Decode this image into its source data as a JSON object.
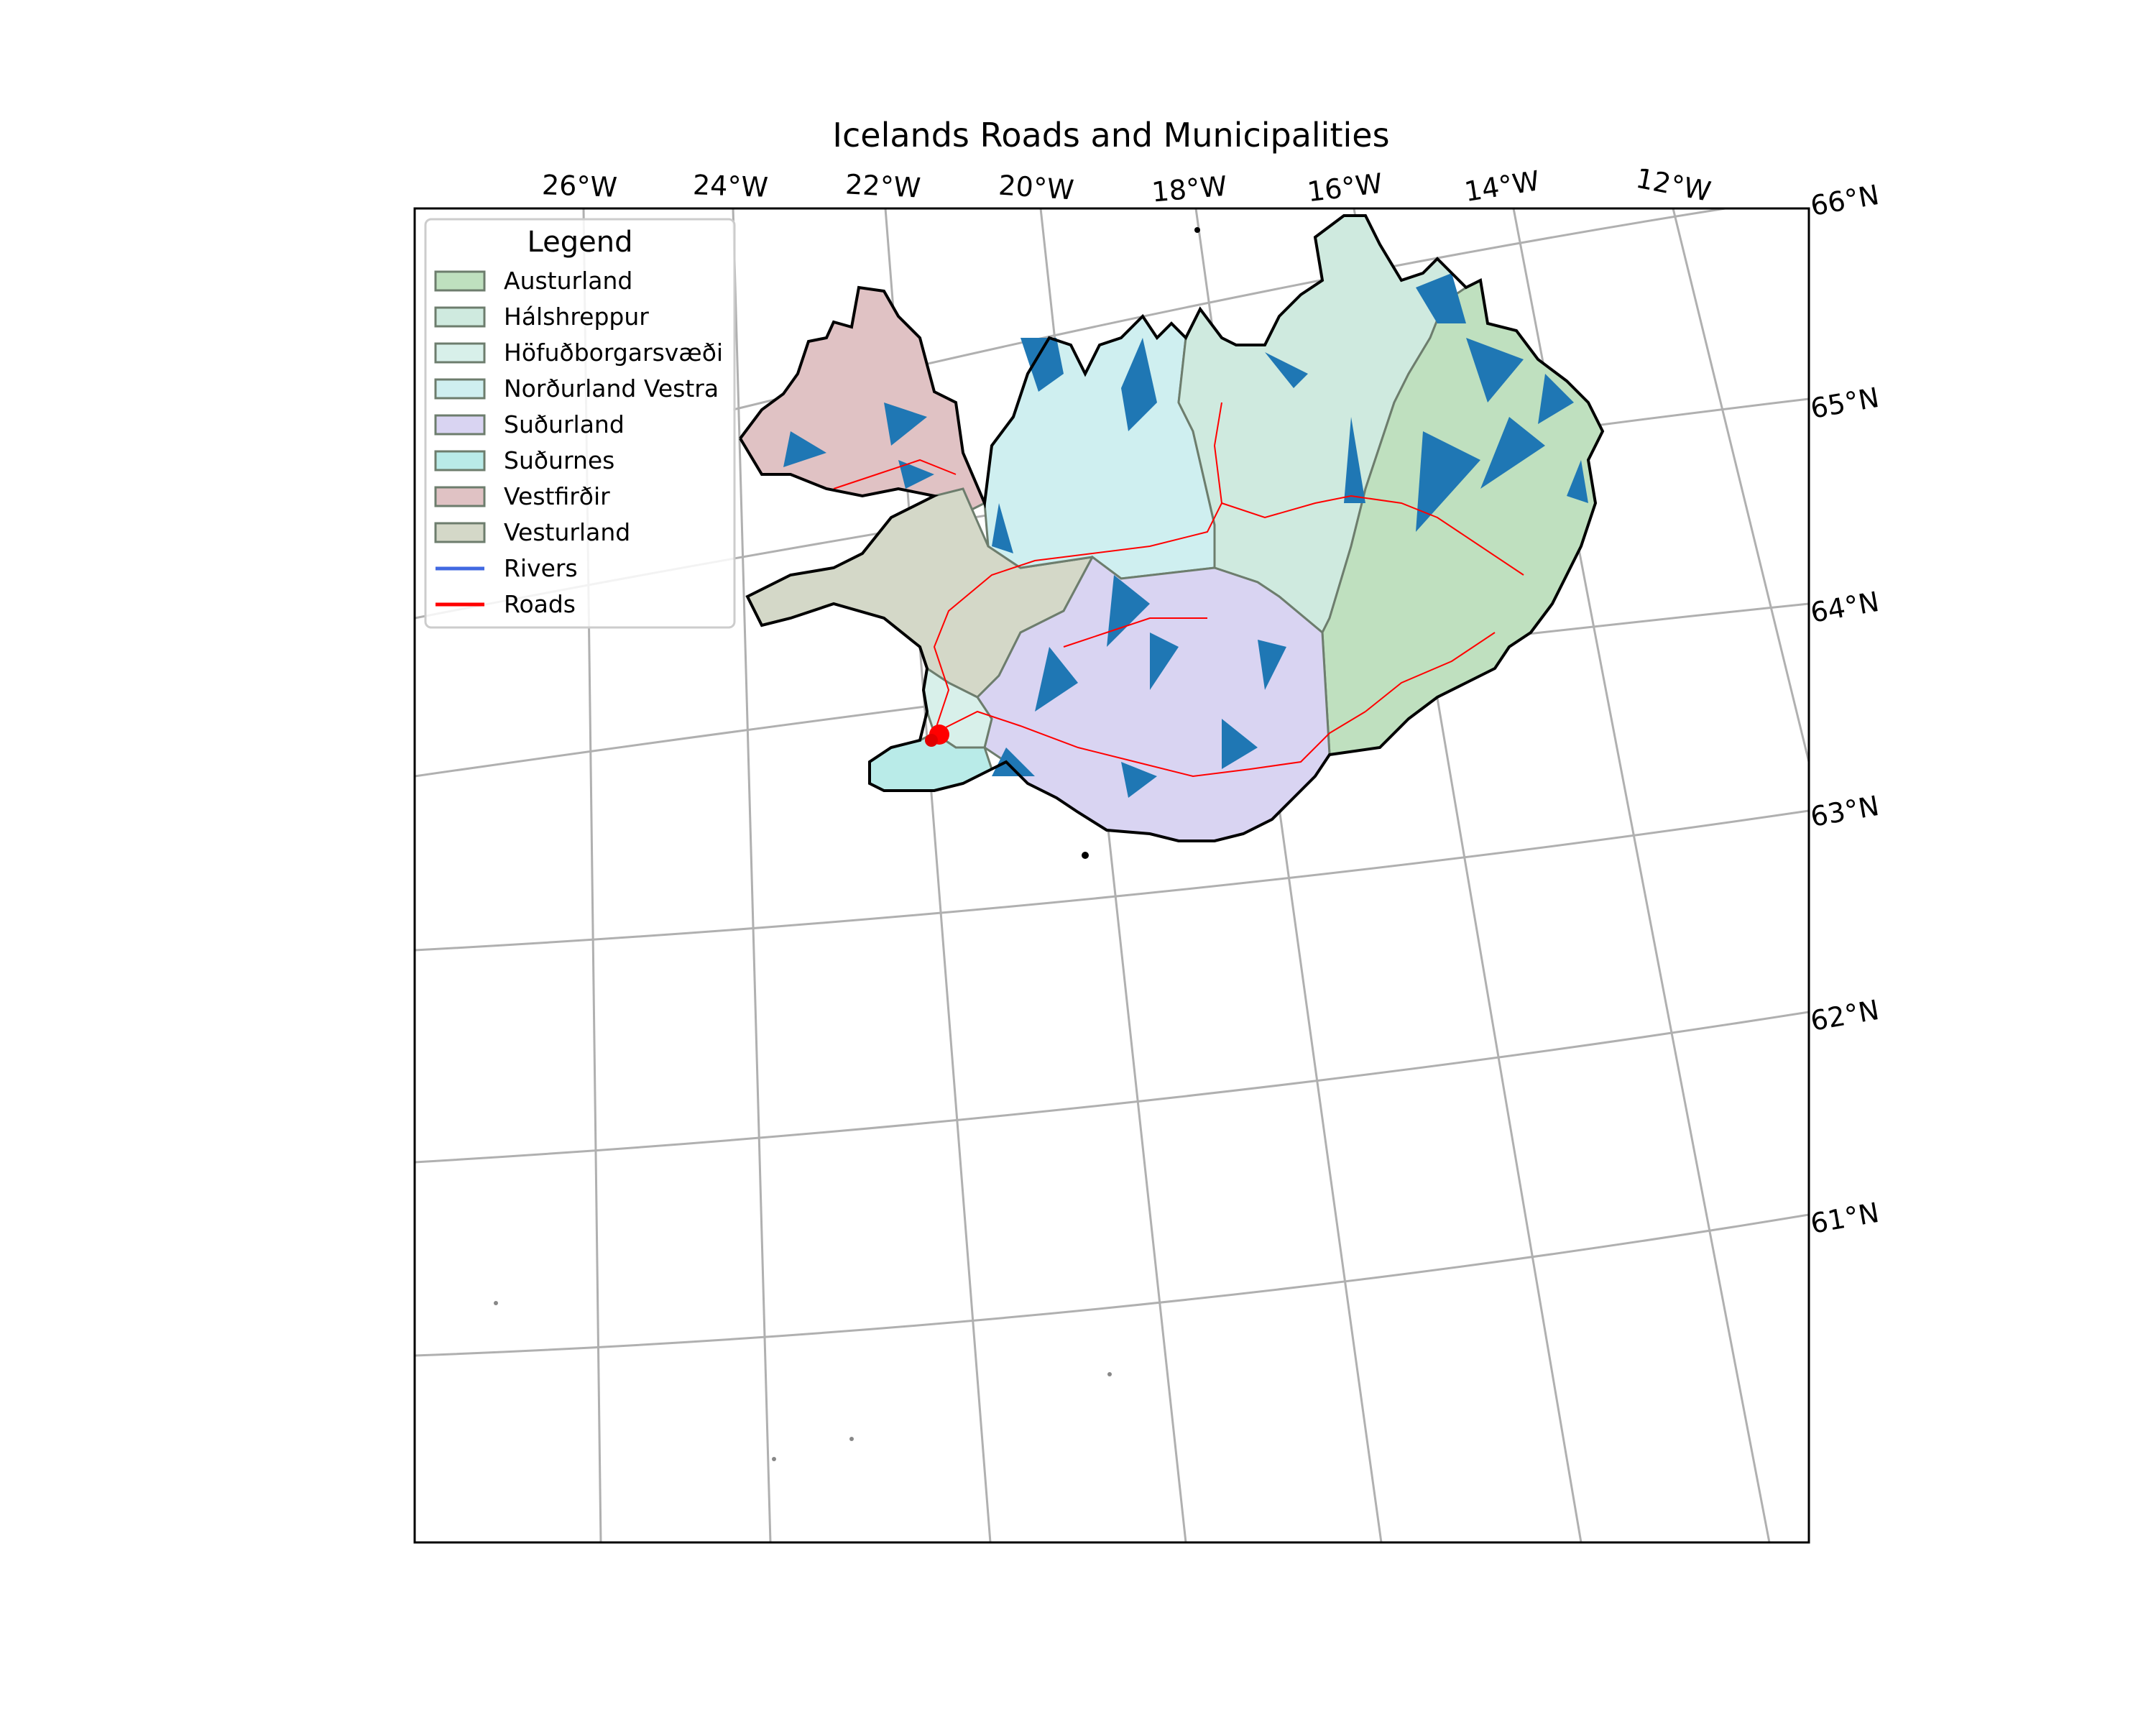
{
  "figure": {
    "title": "Icelands Roads and Municipalities"
  },
  "graticule": {
    "longitude_labels": [
      "26°W",
      "24°W",
      "22°W",
      "20°W",
      "18°W",
      "16°W",
      "14°W",
      "12°W"
    ],
    "latitude_labels": [
      "66°N",
      "65°N",
      "64°N",
      "63°N",
      "62°N",
      "61°N"
    ]
  },
  "legend": {
    "title": "Legend",
    "placement": "top-left",
    "items": [
      {
        "label": "Austurland",
        "kind": "patch",
        "color": "#bfe0bf"
      },
      {
        "label": "Hálshreppur",
        "kind": "patch",
        "color": "#cfeadf"
      },
      {
        "label": "Höfuðborgarsvæði",
        "kind": "patch",
        "color": "#d8f0ea"
      },
      {
        "label": "Norðurland Vestra",
        "kind": "patch",
        "color": "#cfeff0"
      },
      {
        "label": "Suðurland",
        "kind": "patch",
        "color": "#d9d4f2"
      },
      {
        "label": "Suðurnes",
        "kind": "patch",
        "color": "#b9ebe8"
      },
      {
        "label": "Vestfirðir",
        "kind": "patch",
        "color": "#e0c2c4"
      },
      {
        "label": "Vesturland",
        "kind": "patch",
        "color": "#d4d8c8"
      },
      {
        "label": "Rivers",
        "kind": "line",
        "color": "#4169e1"
      },
      {
        "label": "Roads",
        "kind": "line",
        "color": "#ff0000"
      }
    ]
  },
  "map_layers": {
    "water_color": "#1f77b4",
    "coastline_color": "#000000",
    "graticule_color": "#b0b0b0"
  }
}
